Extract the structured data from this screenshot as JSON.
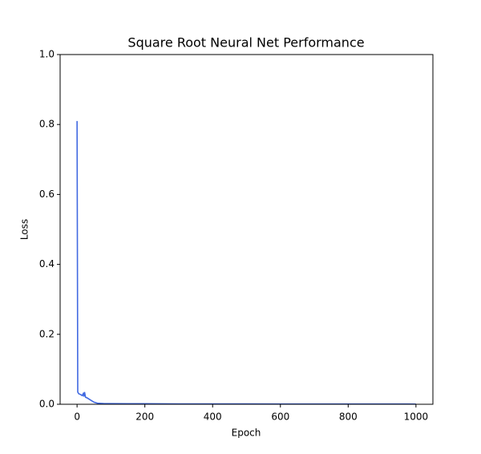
{
  "chart_data": {
    "type": "line",
    "title": "Square Root Neural Net Performance",
    "x_label": "Epoch",
    "y_label": "Loss",
    "x": [
      0,
      2,
      5,
      10,
      15,
      18,
      20,
      22,
      25,
      30,
      40,
      50,
      60,
      80,
      100,
      150,
      200,
      300,
      400,
      500,
      600,
      700,
      800,
      900,
      1000
    ],
    "series": [
      {
        "name": "Loss",
        "color": "#4169e1",
        "values": [
          0.81,
          0.035,
          0.03,
          0.028,
          0.025,
          0.03,
          0.022,
          0.035,
          0.02,
          0.018,
          0.012,
          0.006,
          0.003,
          0.002,
          0.002,
          0.0015,
          0.0015,
          0.001,
          0.001,
          0.001,
          0.0008,
          0.0008,
          0.0007,
          0.0007,
          0.0006
        ]
      }
    ],
    "xlim": [
      -50,
      1050
    ],
    "xticks": [
      0,
      200,
      400,
      600,
      800,
      1000
    ],
    "ylim": [
      0,
      1
    ],
    "yticks": [
      {
        "value": 0,
        "label": "0.0"
      },
      0.2,
      0.4,
      0.6,
      0.8,
      {
        "value": 1,
        "label": "1.0"
      }
    ],
    "grid": false
  }
}
